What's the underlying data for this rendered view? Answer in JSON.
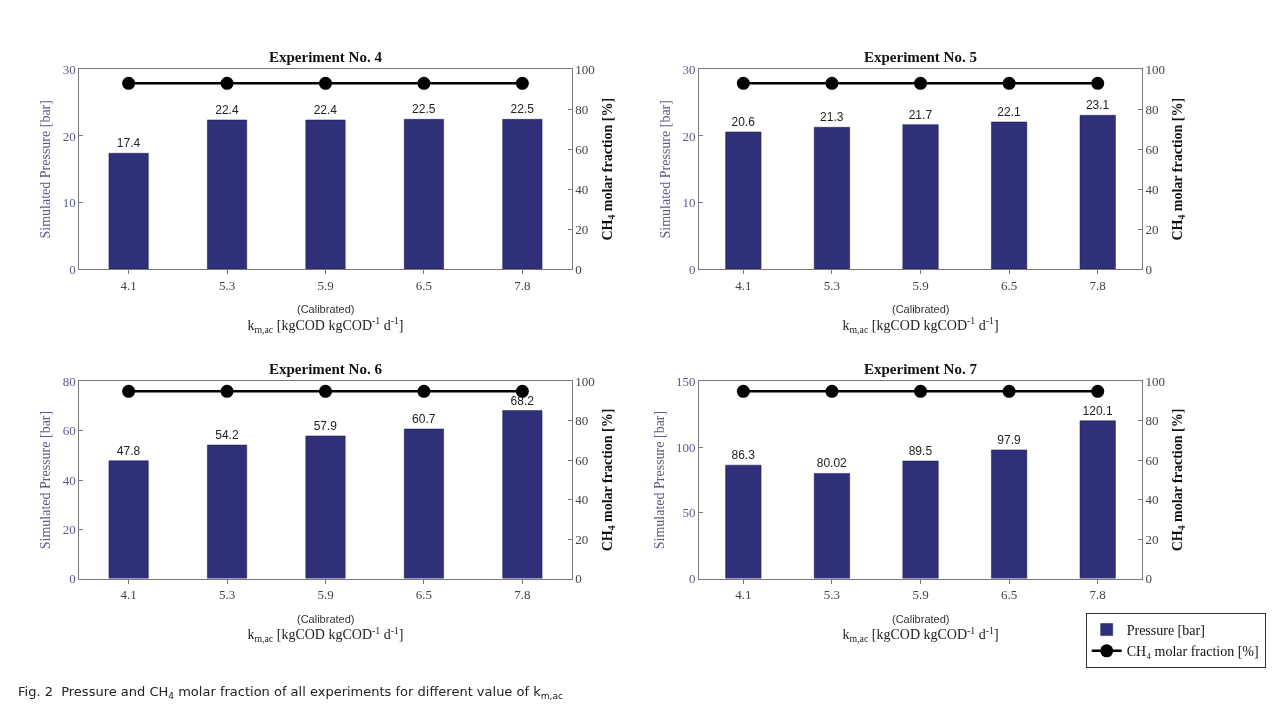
{
  "chart_data": [
    {
      "type": "bar",
      "title": "Experiment No. 4",
      "xlabel": "k$_{m,ac}$ [kgCOD kgCOD$^{-1}$ d$^{-1}$]",
      "ylabel": "Simulated Pressure [bar]",
      "y2label": "CH$_{4}$ molar fraction [%]",
      "categories": [
        "4.1",
        "5.3",
        "5.9",
        "6.5",
        "7.8"
      ],
      "series": [
        {
          "color": "#2f2f7a",
          "values": [
            17.4,
            22.4,
            22.4,
            22.5,
            22.5
          ],
          "value_labels": [
            "17.4",
            "22.4",
            "22.4",
            "22.5",
            "22.5"
          ]
        },
        {
          "type": "line",
          "axis": "y2",
          "color": "#000000",
          "values": [
            93,
            93,
            93,
            93,
            93
          ]
        }
      ],
      "ylim": [
        0,
        30
      ],
      "yticks": [
        0,
        10,
        20,
        30
      ],
      "y2lim": [
        0,
        100
      ],
      "y2ticks": [
        0,
        20,
        40,
        60,
        80,
        100
      ],
      "marker": "circle",
      "line_style": "solid",
      "annotations": [
        "(Calibrated)",
        "Fig. 2  Pressure and CH$_{4}$ molar fraction of all experiments for different value of k$_{m,ac}$"
      ]
    },
    {
      "type": "bar",
      "title": "Experiment No. 5",
      "xlabel": "k$_{m,ac}$ [kgCOD kgCOD$^{-1}$ d$^{-1}$]",
      "ylabel": "Simulated Pressure [bar]",
      "y2label": "CH$_{4}$ molar fraction [%]",
      "categories": [
        "4.1",
        "5.3",
        "5.9",
        "6.5",
        "7.8"
      ],
      "series": [
        {
          "color": "#2f2f7a",
          "values": [
            20.6,
            21.3,
            21.7,
            22.1,
            23.1
          ],
          "value_labels": [
            "20.6",
            "21.3",
            "21.7",
            "22.1",
            "23.1"
          ]
        },
        {
          "type": "line",
          "axis": "y2",
          "color": "#000000",
          "values": [
            93,
            93,
            93,
            93,
            93
          ]
        }
      ],
      "ylim": [
        0,
        30
      ],
      "yticks": [
        0,
        10,
        20,
        30
      ],
      "y2lim": [
        0,
        100
      ],
      "y2ticks": [
        0,
        20,
        40,
        60,
        80,
        100
      ],
      "marker": "circle",
      "line_style": "solid",
      "annotations": [
        "(Calibrated)"
      ]
    },
    {
      "type": "bar",
      "title": "Experiment No. 6",
      "xlabel": "k$_{m,ac}$ [kgCOD kgCOD$^{-1}$ d$^{-1}$]",
      "ylabel": "Simulated Pressure [bar]",
      "y2label": "CH$_{4}$ molar fraction [%]",
      "categories": [
        "4.1",
        "5.3",
        "5.9",
        "6.5",
        "7.8"
      ],
      "series": [
        {
          "color": "#2f2f7a",
          "values": [
            47.8,
            54.2,
            57.9,
            60.7,
            68.2
          ],
          "value_labels": [
            "47.8",
            "54.2",
            "57.9",
            "60.7",
            "68.2"
          ]
        },
        {
          "type": "line",
          "axis": "y2",
          "color": "#000000",
          "values": [
            95,
            95,
            95,
            95,
            95
          ]
        }
      ],
      "ylim": [
        0,
        80
      ],
      "yticks": [
        0,
        20,
        40,
        60,
        80
      ],
      "y2lim": [
        0,
        100
      ],
      "y2ticks": [
        0,
        20,
        40,
        60,
        80,
        100
      ],
      "marker": "circle",
      "line_style": "solid",
      "annotations": [
        "(Calibrated)"
      ]
    },
    {
      "type": "bar",
      "title": "Experiment No. 7",
      "xlabel": "k$_{m,ac}$ [kgCOD kgCOD$^{-1}$ d$^{-1}$]",
      "ylabel": "Simulated Pressure [bar]",
      "y2label": "CH$_{4}$ molar fraction [%]",
      "categories": [
        "4.1",
        "5.3",
        "5.9",
        "6.5",
        "7.8"
      ],
      "series": [
        {
          "name": "Pressure [bar]",
          "color": "#2f2f7a",
          "values": [
            86.3,
            80.02,
            89.5,
            97.9,
            120.1
          ],
          "value_labels": [
            "86.3",
            "80.02",
            "89.5",
            "97.9",
            "120.1"
          ]
        },
        {
          "name": "CH₄ molar fraction [%]",
          "type": "line",
          "axis": "y2",
          "color": "#000000",
          "values": [
            95,
            95,
            95,
            95,
            95
          ]
        }
      ],
      "ylim": [
        0,
        150
      ],
      "yticks": [
        0,
        50,
        100,
        150
      ],
      "y2lim": [
        0,
        100
      ],
      "y2ticks": [
        0,
        20,
        40,
        60,
        80,
        100
      ],
      "marker": "circle",
      "line_style": "solid",
      "legend": "bottom right",
      "annotations": [
        "(Calibrated)"
      ]
    }
  ]
}
